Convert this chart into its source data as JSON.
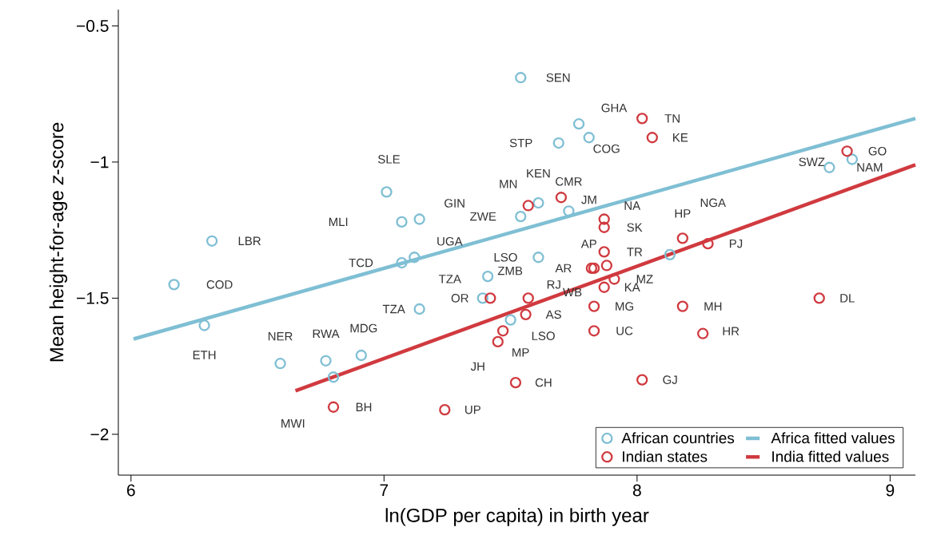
{
  "chart_data": {
    "type": "scatter",
    "xlabel": "ln(GDP per capita) in birth year",
    "ylabel": "Mean height-for-age *z*-score",
    "xlim": [
      5.95,
      9.1
    ],
    "ylim": [
      -2.15,
      -0.44
    ],
    "xticks": [
      6,
      7,
      8,
      9
    ],
    "yticks": [
      {
        "value": -0.5,
        "label": "−0.5"
      },
      {
        "value": -1,
        "label": "−1"
      },
      {
        "value": -1.5,
        "label": "−1.5"
      },
      {
        "value": -2,
        "label": "−2"
      }
    ],
    "grid": false,
    "legend": "bottom right",
    "marker": "circle",
    "series": [
      {
        "name": "African countries",
        "type": "scatter",
        "color": "#7fbfd4",
        "x": [
          6.17,
          6.32,
          6.29,
          6.59,
          6.77,
          6.8,
          6.91,
          7.01,
          7.07,
          7.14,
          7.07,
          7.12,
          7.14,
          7.41,
          7.39,
          7.61,
          7.5,
          7.54,
          7.69,
          7.77,
          7.81,
          7.61,
          7.54,
          7.73,
          8.13,
          8.76,
          8.85
        ],
        "values": [
          -1.45,
          -1.29,
          -1.6,
          -1.74,
          -1.73,
          -1.79,
          -1.71,
          -1.11,
          -1.22,
          -1.21,
          -1.37,
          -1.35,
          -1.54,
          -1.42,
          -1.5,
          -1.35,
          -1.58,
          -0.69,
          -0.93,
          -0.86,
          -0.91,
          -1.15,
          -1.2,
          -1.18,
          -1.34,
          -1.02,
          -0.99
        ]
      },
      {
        "name": "Africa fitted values",
        "type": "line",
        "color": "#7fbfd4",
        "marker": "none",
        "x": [
          6.01,
          9.1
        ],
        "values": [
          -1.65,
          -0.84
        ]
      },
      {
        "name": "Indian states",
        "type": "scatter",
        "color": "#d03a3f",
        "x": [
          8.02,
          8.06,
          8.83,
          7.57,
          7.7,
          7.87,
          7.87,
          8.18,
          8.28,
          7.87,
          7.88,
          7.82,
          7.83,
          7.91,
          7.87,
          7.83,
          7.83,
          8.18,
          8.26,
          8.72,
          7.42,
          7.57,
          7.56,
          7.47,
          7.45,
          7.52,
          8.02,
          6.8,
          7.24
        ],
        "values": [
          -0.84,
          -0.91,
          -0.96,
          -1.16,
          -1.13,
          -1.21,
          -1.24,
          -1.28,
          -1.3,
          -1.33,
          -1.38,
          -1.39,
          -1.39,
          -1.43,
          -1.46,
          -1.53,
          -1.62,
          -1.53,
          -1.63,
          -1.5,
          -1.5,
          -1.5,
          -1.56,
          -1.62,
          -1.66,
          -1.81,
          -1.8,
          -1.9,
          -1.91
        ]
      },
      {
        "name": "India fitted values",
        "type": "line",
        "color": "#d03a3f",
        "marker": "none",
        "x": [
          6.65,
          9.1
        ],
        "values": [
          -1.84,
          -1.01
        ]
      }
    ],
    "annotations": [
      {
        "text": "LBR",
        "x": 6.32,
        "y": -1.29
      },
      {
        "text": "COD",
        "x": 6.17,
        "y": -1.45
      },
      {
        "text": "ETH",
        "x": 6.29,
        "y": -1.6
      },
      {
        "text": "NER",
        "x": 6.59,
        "y": -1.74
      },
      {
        "text": "RWA",
        "x": 6.77,
        "y": -1.73
      },
      {
        "text": "MDG",
        "x": 6.91,
        "y": -1.71
      },
      "MWI",
      {
        "text": "SLE",
        "x": 7.01,
        "y": -1.11
      },
      "MLI",
      {
        "text": "GIN",
        "x": 7.14,
        "y": -1.21
      },
      {
        "text": "TCD",
        "x": 7.07,
        "y": -1.37
      },
      {
        "text": "UGA",
        "x": 7.12,
        "y": -1.35
      },
      {
        "text": "TZA",
        "x": 7.14,
        "y": -1.54
      },
      {
        "text": "TZA",
        "x": 7.39,
        "y": -1.5
      },
      {
        "text": "ZMB",
        "x": 7.41,
        "y": -1.42
      },
      {
        "text": "OR",
        "x": 7.42,
        "y": -1.5
      },
      {
        "text": "LSO",
        "x": 7.61,
        "y": -1.35
      },
      {
        "text": "LSO",
        "x": 7.5,
        "y": -1.58
      },
      {
        "text": "SEN",
        "x": 7.54,
        "y": -0.69
      },
      {
        "text": "GHA",
        "x": 7.77,
        "y": -0.86
      },
      {
        "text": "STP",
        "x": 7.69,
        "y": -0.93
      },
      {
        "text": "COG",
        "x": 7.81,
        "y": -0.91
      },
      {
        "text": "KEN",
        "x": 7.61,
        "y": -1.15
      },
      {
        "text": "CMR",
        "x": 7.73,
        "y": -1.18
      },
      {
        "text": "MN",
        "x": 7.57,
        "y": -1.16
      },
      {
        "text": "JM",
        "x": 7.7,
        "y": -1.13
      },
      {
        "text": "ZWE",
        "x": 7.54,
        "y": -1.2
      },
      {
        "text": "NA",
        "x": 7.87,
        "y": -1.21
      },
      {
        "text": "SK",
        "x": 7.87,
        "y": -1.24
      },
      {
        "text": "HP",
        "x": 8.18,
        "y": -1.28
      },
      "NGA",
      {
        "text": "AP",
        "x": 7.87,
        "y": -1.33
      },
      {
        "text": "TR",
        "x": 7.88,
        "y": -1.38
      },
      {
        "text": "AR",
        "x": 7.82,
        "y": -1.39
      },
      {
        "text": "RJ",
        "x": 7.57,
        "y": -1.5
      },
      {
        "text": "WB",
        "x": 7.83,
        "y": -1.39
      },
      {
        "text": "MZ",
        "x": 7.91,
        "y": -1.43
      },
      {
        "text": "KA",
        "x": 7.87,
        "y": -1.46
      },
      {
        "text": "MG",
        "x": 7.83,
        "y": -1.53
      },
      {
        "text": "UC",
        "x": 7.83,
        "y": -1.62
      },
      {
        "text": "MH",
        "x": 8.18,
        "y": -1.53
      },
      {
        "text": "HR",
        "x": 8.26,
        "y": -1.63
      },
      {
        "text": "DL",
        "x": 8.72,
        "y": -1.5
      },
      {
        "text": "AS",
        "x": 7.56,
        "y": -1.56
      },
      {
        "text": "MP",
        "x": 7.47,
        "y": -1.62
      },
      {
        "text": "JH",
        "x": 7.45,
        "y": -1.66
      },
      {
        "text": "CH",
        "x": 7.52,
        "y": -1.81
      },
      {
        "text": "GJ",
        "x": 8.02,
        "y": -1.8
      },
      {
        "text": "BH",
        "x": 6.8,
        "y": -1.9
      },
      {
        "text": "UP",
        "x": 7.24,
        "y": -1.91
      },
      {
        "text": "TN",
        "x": 8.02,
        "y": -0.84
      },
      {
        "text": "KE",
        "x": 8.06,
        "y": -0.91
      },
      {
        "text": "GO",
        "x": 8.83,
        "y": -0.96
      },
      {
        "text": "NAM",
        "x": 8.85,
        "y": -0.99
      },
      {
        "text": "SWZ",
        "x": 8.76,
        "y": -1.02
      },
      {
        "text": "PJ",
        "x": 8.28,
        "y": -1.3
      }
    ]
  }
}
